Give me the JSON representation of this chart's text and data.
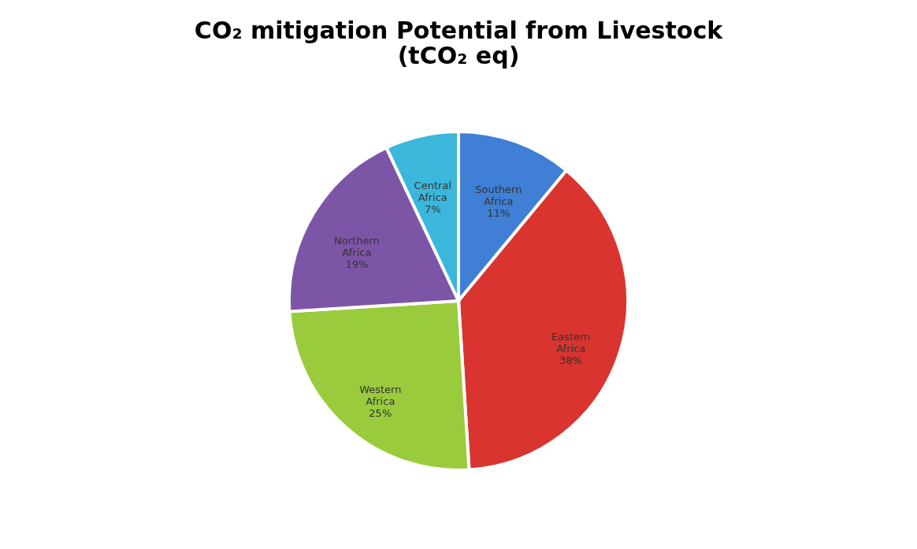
{
  "chart_data": {
    "type": "pie",
    "title": "CO₂ mitigation Potential from Livestock (tCO₂ eq)",
    "categories": [
      "Southern Africa",
      "Eastern Africa",
      "Western Africa",
      "Northern Africa",
      "Central Africa"
    ],
    "values": [
      11,
      38,
      25,
      19,
      7
    ],
    "value_labels": [
      "11%",
      "38%",
      "25%",
      "19%",
      "7%"
    ],
    "colors": [
      "#3f7fd6",
      "#d9342f",
      "#9acb3c",
      "#7d55a6",
      "#3cb7dc"
    ],
    "legend": false
  }
}
